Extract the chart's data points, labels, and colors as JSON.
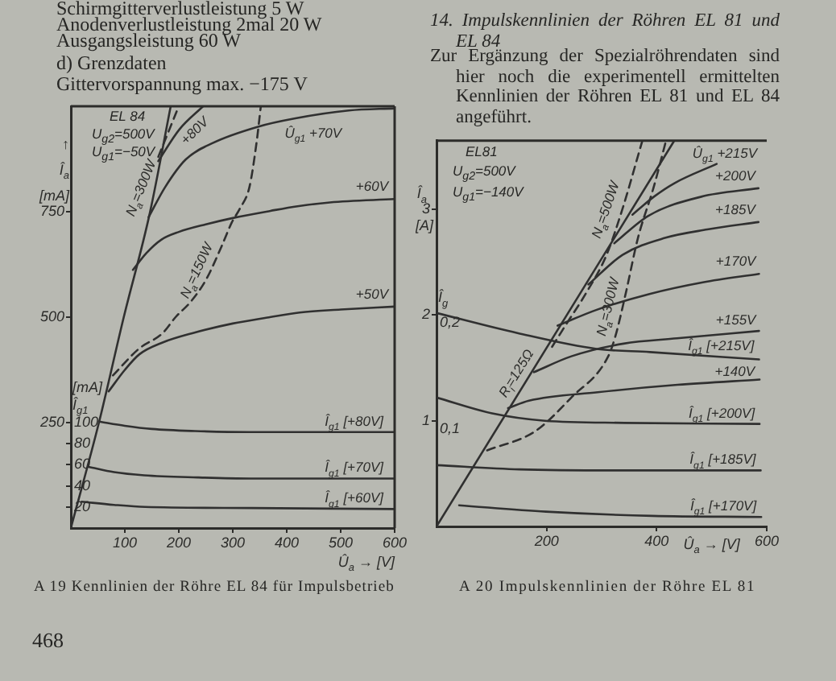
{
  "chart_data": [
    {
      "type": "line",
      "title": "A 19 Kennlinien der Röhre EL 84 für Impulsbetrieb",
      "xlabel": "Û$_{a}$ → [V]",
      "ylabel": "↑ Î$_{a}$ [mA]",
      "y2label": "[mA] Î$_{g1}$",
      "xlim": [
        0,
        600
      ],
      "xticks": [
        100,
        200,
        300,
        400,
        500,
        600
      ],
      "ylim": [
        0,
        1000
      ],
      "yticks": [
        250,
        500,
        750
      ],
      "y2lim": [
        0,
        400
      ],
      "y2ticks": [
        20,
        40,
        60,
        80,
        100
      ],
      "annotations": [
        "EL 84",
        "U$_{g2}$=500V",
        "U$_{g1}$=−50V",
        "Schirmgitterverlustleistung 5 W",
        "Anodenverlustleistung 2mal 20 W",
        "Ausgangsleistung 60 W",
        "d) Grenzdaten",
        "Gittervorspannung max. −175 V",
        "468"
      ],
      "series": [
        {
          "color": "#303030",
          "x": [
            0,
            52,
            98,
            146,
            185
          ],
          "values": [
            0,
            250,
            500,
            745,
            1000
          ]
        },
        {
          "name": "+80V",
          "color": "#303030",
          "x": [
            162,
            201,
            245
          ],
          "values": [
            870,
            945,
            1000
          ]
        },
        {
          "name": "Û$_{g1}$ +70V",
          "color": "#303030",
          "x": [
            144,
            175,
            213,
            263,
            348,
            414,
            515,
            600
          ],
          "values": [
            737,
            809,
            874,
            913,
            952,
            971,
            990,
            995
          ]
        },
        {
          "name": "+60V",
          "color": "#303030",
          "x": [
            115,
            140,
            168,
            200,
            250,
            300,
            370,
            420,
            480,
            600
          ],
          "values": [
            612,
            652,
            684,
            702,
            720,
            735,
            752,
            763,
            772,
            780
          ]
        },
        {
          "name": "+50V",
          "color": "#303030",
          "x": [
            70,
            100,
            127,
            170,
            225,
            300,
            364,
            424,
            500,
            600
          ],
          "values": [
            324,
            375,
            412,
            440,
            462,
            485,
            499,
            511,
            518,
            525
          ]
        },
        {
          "name": "N$_{a}$=300W",
          "color": "#303030",
          "line_style": "dashed",
          "x": [
            162,
            200
          ],
          "values": [
            880,
            1000
          ]
        },
        {
          "name": "N$_{a}$=150W",
          "color": "#303030",
          "line_style": "dashed",
          "x": [
            78,
            126,
            170,
            194,
            223,
            251,
            279,
            298,
            313,
            331,
            344,
            352
          ],
          "values": [
            362,
            425,
            462,
            500,
            538,
            590,
            667,
            724,
            757,
            809,
            913,
            1000
          ]
        },
        {
          "name": "Î$_{g1}$ [+80V]",
          "color": "#303030",
          "axis": "y2",
          "x": [
            52,
            100,
            150,
            230,
            330,
            600
          ],
          "values": [
            101,
            97,
            94,
            92,
            91,
            91
          ]
        },
        {
          "name": "Î$_{g1}$ [+70V]",
          "color": "#303030",
          "axis": "y2",
          "x": [
            33,
            80,
            136,
            235,
            333,
            600
          ],
          "values": [
            58,
            53,
            50,
            48,
            47,
            47
          ]
        },
        {
          "name": "Î$_{g1}$ [+60V]",
          "color": "#303030",
          "axis": "y2",
          "x": [
            20,
            80,
            138,
            335,
            600
          ],
          "values": [
            25,
            22,
            20,
            19,
            18
          ]
        }
      ]
    },
    {
      "type": "line",
      "title": "A 20 Impulskennlinien der Röhre EL 81",
      "xlabel": "Û$_{a}$ → [V]",
      "ylabel": "Î$_{a}$ [A]",
      "y2label": "Î$_{g}$",
      "xlim": [
        0,
        600
      ],
      "xticks": [
        200,
        400,
        600
      ],
      "ylim": [
        0,
        3.65
      ],
      "yticks": [
        1,
        2,
        3
      ],
      "y2lim": [
        0,
        0.365
      ],
      "y2ticks": [
        {
          "value": 0.1,
          "label": "0,1"
        },
        {
          "value": 0.2,
          "label": "0,2"
        }
      ],
      "annotations": [
        "EL81",
        "U$_{g2}$=500V",
        "U$_{g1}$=−140V",
        "14. Impulskennlinien der Röhren EL 81 und EL 84",
        "Zur Ergänzung der Spezialröhrendaten sind hier noch die experimentell ermittelten Kennlinien der Röhren EL 81 und EL 84 angeführt."
      ],
      "series": [
        {
          "name": "R$_{i}$=125Ω",
          "color": "#303030",
          "x": [
            0,
            432
          ],
          "values": [
            0,
            3.65
          ]
        },
        {
          "name": "Û$_{g1}$ +215V",
          "color": "#303030",
          "x": [
            356,
            395,
            433,
            509
          ],
          "values": [
            2.95,
            3.12,
            3.25,
            3.43
          ]
        },
        {
          "name": "+200V",
          "color": "#303030",
          "x": [
            323,
            385,
            481,
            585
          ],
          "values": [
            2.68,
            2.94,
            3.12,
            3.2
          ]
        },
        {
          "name": "+185V",
          "color": "#303030",
          "x": [
            276,
            338,
            415,
            492,
            585
          ],
          "values": [
            2.29,
            2.57,
            2.73,
            2.81,
            2.88
          ]
        },
        {
          "name": "+170V",
          "color": "#303030",
          "x": [
            220,
            291,
            387,
            484,
            586
          ],
          "values": [
            1.9,
            2.05,
            2.2,
            2.31,
            2.39
          ]
        },
        {
          "name": "+155V",
          "color": "#303030",
          "x": [
            177,
            245,
            340,
            437,
            586
          ],
          "values": [
            1.46,
            1.61,
            1.73,
            1.78,
            1.85
          ]
        },
        {
          "name": "+140V",
          "color": "#303030",
          "x": [
            130,
            168,
            293,
            438,
            587
          ],
          "values": [
            1.12,
            1.19,
            1.27,
            1.34,
            1.39
          ]
        },
        {
          "name": "N$_{a}$=500W",
          "color": "#303030",
          "line_style": "dashed",
          "x": [
            210,
            234,
            272,
            309,
            337,
            374
          ],
          "values": [
            1.7,
            1.9,
            2.21,
            2.57,
            2.99,
            3.65
          ]
        },
        {
          "name": "N$_{a}$=300W",
          "color": "#303030",
          "line_style": "dashed",
          "x": [
            92,
            179,
            245,
            312,
            325,
            344,
            366,
            394,
            417
          ],
          "values": [
            0.72,
            0.9,
            1.22,
            1.61,
            1.8,
            2.21,
            2.73,
            3.2,
            3.65
          ]
        },
        {
          "name": "Î$_{g1}$ [+215V]",
          "color": "#303030",
          "axis": "y2",
          "x": [
            0,
            147,
            291,
            388,
            586
          ],
          "values": [
            0.202,
            0.183,
            0.168,
            0.165,
            0.158
          ]
        },
        {
          "name": "Î$_{g1}$ [+200V]",
          "color": "#303030",
          "axis": "y2",
          "x": [
            0,
            101,
            197,
            342,
            587
          ],
          "values": [
            0.122,
            0.107,
            0.1,
            0.098,
            0.097
          ]
        },
        {
          "name": "Î$_{g1}$ [+185V]",
          "color": "#303030",
          "axis": "y2",
          "x": [
            0,
            151,
            343,
            589
          ],
          "values": [
            0.058,
            0.054,
            0.053,
            0.053
          ]
        },
        {
          "name": "Î$_{g1}$ [+170V]",
          "color": "#303030",
          "axis": "y2",
          "x": [
            41,
            199,
            392,
            590
          ],
          "values": [
            0.02,
            0.014,
            0.01,
            0.009
          ]
        }
      ]
    }
  ]
}
